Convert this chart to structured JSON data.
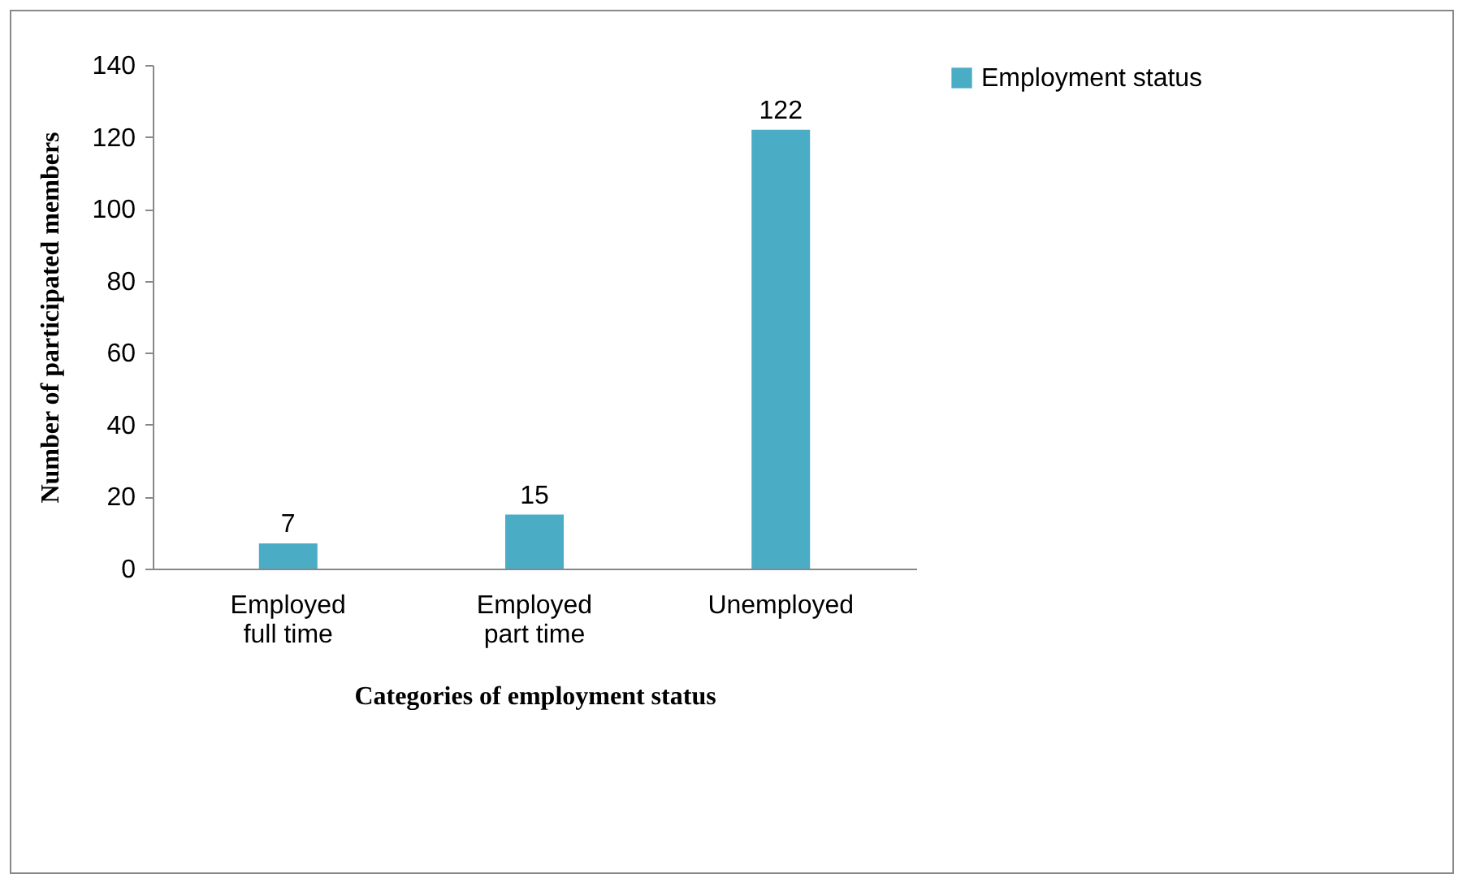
{
  "chart_data": {
    "type": "bar",
    "xlabel": "Categories of employment status",
    "ylabel": "Number of participated members",
    "categories": [
      "Employed full time",
      "Employed part time",
      "Unemployed"
    ],
    "series": [
      {
        "name": "Employment status",
        "color": "#4bacc6",
        "values": [
          7,
          15,
          122
        ]
      }
    ],
    "ylim": [
      0,
      140
    ],
    "yticks": [
      0,
      20,
      40,
      60,
      80,
      100,
      120,
      140
    ],
    "grid": false,
    "legend": "right",
    "data_labels": true
  }
}
